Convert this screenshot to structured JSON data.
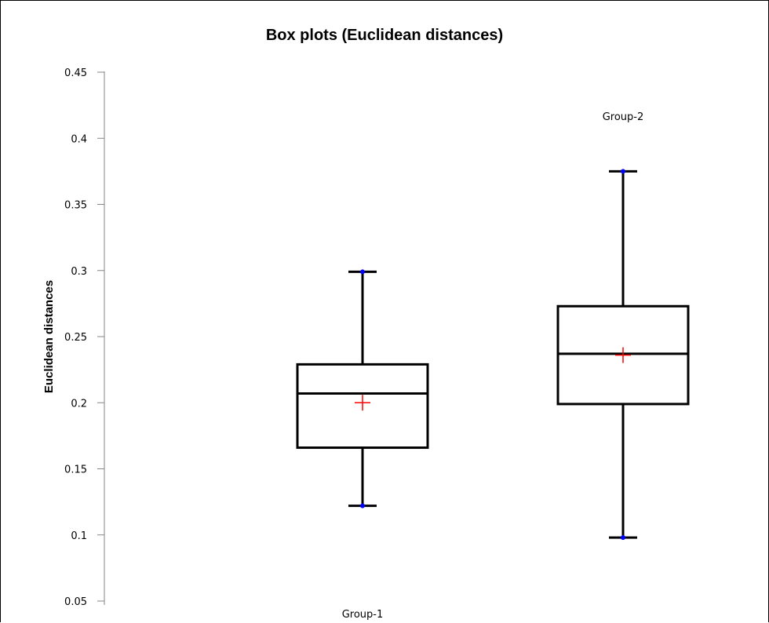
{
  "chart_data": {
    "type": "box",
    "title": "Box plots (Euclidean distances)",
    "ylabel": "Euclidean distances",
    "xlabel": "",
    "ylim": [
      0.05,
      0.45
    ],
    "yticks": [
      "0.05",
      "0.1",
      "0.15",
      "0.2",
      "0.25",
      "0.3",
      "0.35",
      "0.4",
      "0.45"
    ],
    "grid": false,
    "groups": [
      {
        "label": "Group-1",
        "min": 0.122,
        "q1": 0.166,
        "median": 0.207,
        "q3": 0.229,
        "max": 0.299,
        "mean": 0.2,
        "label_position": "bottom"
      },
      {
        "label": "Group-2",
        "min": 0.098,
        "q1": 0.199,
        "median": 0.237,
        "q3": 0.273,
        "max": 0.375,
        "mean": 0.236,
        "label_position": "top"
      }
    ],
    "colors": {
      "box": "#000000",
      "extreme_points": "#0000ff",
      "mean_marker": "#ff0000",
      "axis": "#868686"
    }
  }
}
